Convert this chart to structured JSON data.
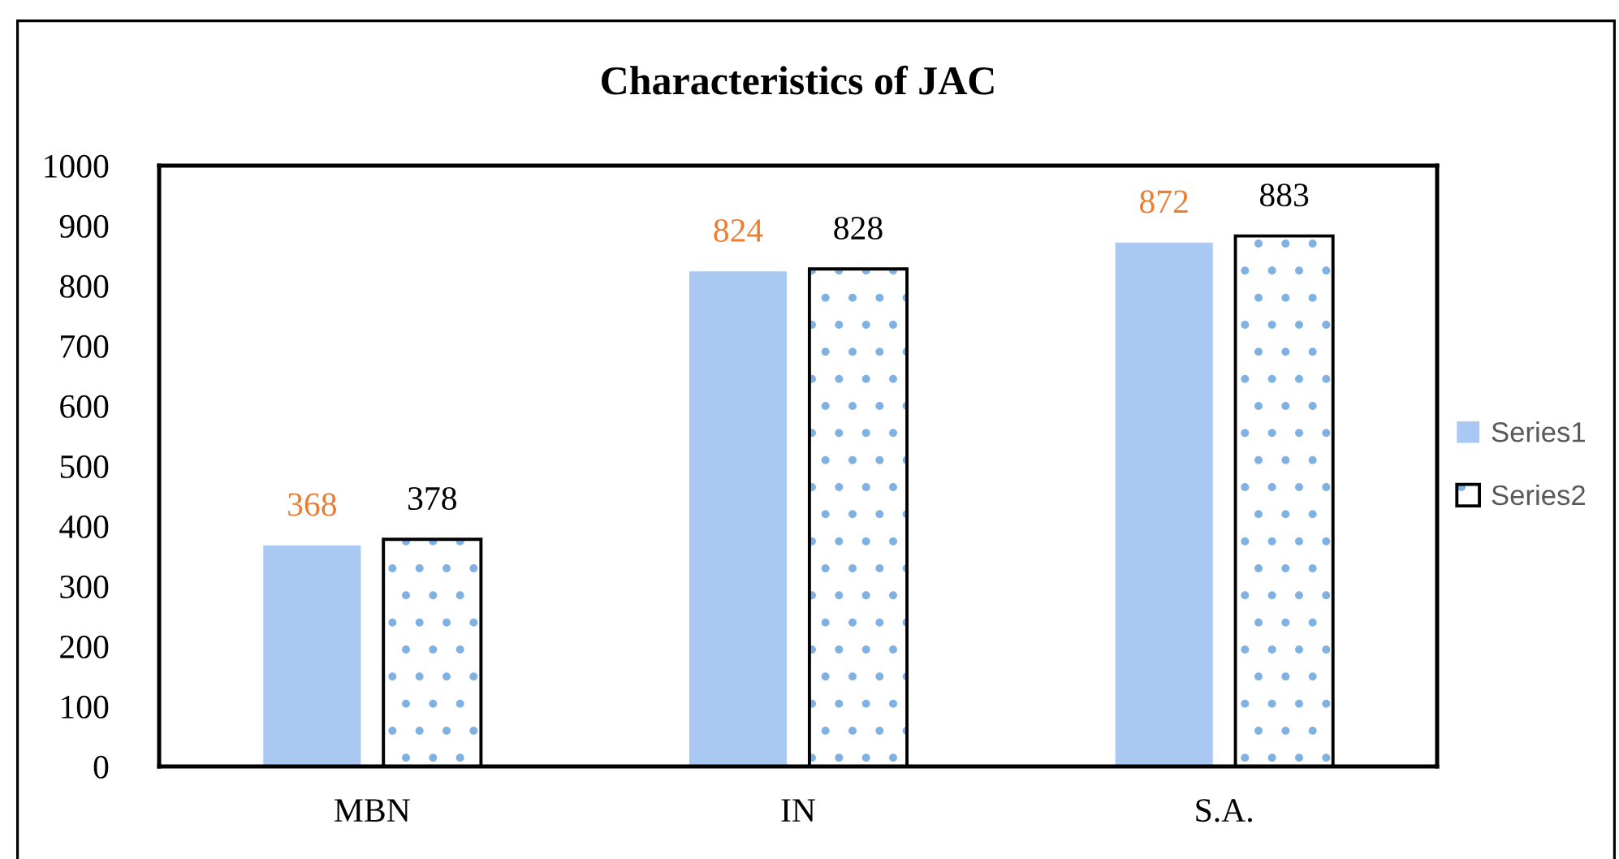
{
  "chart_data": {
    "type": "bar",
    "title": "Characteristics of JAC",
    "categories": [
      "MBN",
      "IN",
      "S.A."
    ],
    "series": [
      {
        "name": "Series1",
        "color": "#a9c9f3",
        "values": [
          368,
          824,
          872
        ]
      },
      {
        "name": "Series2",
        "color": "#000000",
        "values": [
          378,
          828,
          883
        ]
      }
    ],
    "ylim": [
      0,
      1000
    ],
    "yticks": [
      0,
      100,
      200,
      300,
      400,
      500,
      600,
      700,
      800,
      900,
      1000
    ],
    "data_labels": true,
    "legend": "right",
    "grid": false
  }
}
